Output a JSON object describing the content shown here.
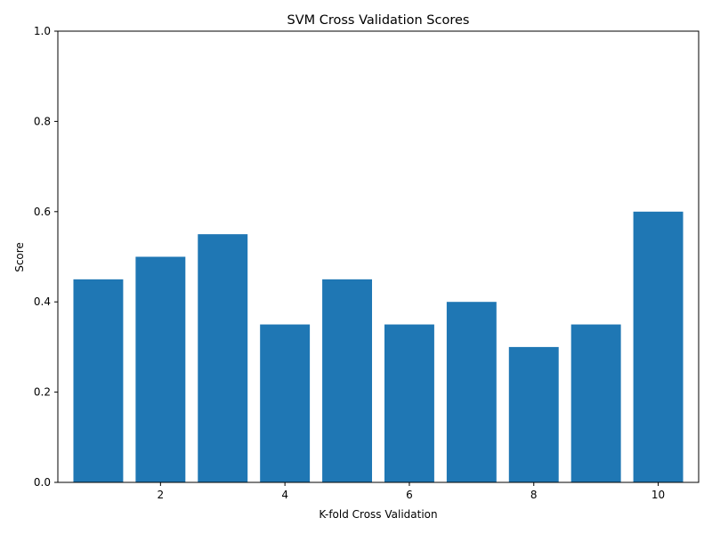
{
  "chart_data": {
    "type": "bar",
    "title": "SVM Cross Validation Scores",
    "xlabel": "K-fold Cross Validation",
    "ylabel": "Score",
    "x": [
      1,
      2,
      3,
      4,
      5,
      6,
      7,
      8,
      9,
      10
    ],
    "values": [
      0.45,
      0.5,
      0.55,
      0.35,
      0.45,
      0.35,
      0.4,
      0.3,
      0.35,
      0.6
    ],
    "xlim": [
      0.35,
      10.65
    ],
    "ylim": [
      0,
      1.0
    ],
    "xticks": [
      2,
      4,
      6,
      8,
      10
    ],
    "yticks": [
      "0.0",
      "0.2",
      "0.4",
      "0.6",
      "0.8",
      "1.0"
    ],
    "bar_color": "#1f77b4",
    "grid": false,
    "legend": "none"
  }
}
